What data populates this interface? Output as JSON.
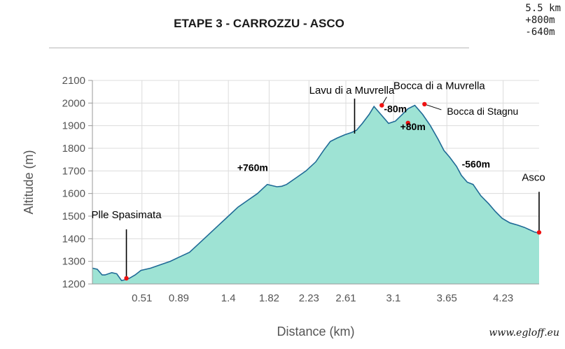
{
  "header": {
    "title": "ETAPE 3 - CARROZZU - ASCO",
    "stats": [
      "5.5 km",
      "+800m",
      "-640m"
    ]
  },
  "watermark": "www.egloff.eu",
  "colors": {
    "fill": "#9ee3d4",
    "line": "#1f6a96",
    "marker": "#ee1111",
    "grid": "#dcdcdc",
    "axis_text": "#555555"
  },
  "chart_data": {
    "type": "area",
    "title": "",
    "xlabel": "Distance (km)",
    "ylabel": "Altitude (m)",
    "xlim": [
      0,
      4.6
    ],
    "ylim": [
      1200,
      2100
    ],
    "x_ticks": [
      "0.51",
      "0.89",
      "1.4",
      "1.82",
      "2.23",
      "2.61",
      "3.1",
      "3.65",
      "4.23"
    ],
    "y_ticks": [
      1200,
      1300,
      1400,
      1500,
      1600,
      1700,
      1800,
      1900,
      2000,
      2100
    ],
    "grid": true,
    "series": [
      {
        "x": [
          0,
          0.05,
          0.1,
          0.13,
          0.2,
          0.25,
          0.3,
          0.35,
          0.38,
          0.44,
          0.5,
          0.6,
          0.7,
          0.8,
          0.9,
          1.0,
          1.1,
          1.2,
          1.3,
          1.4,
          1.5,
          1.6,
          1.7,
          1.75,
          1.8,
          1.85,
          1.9,
          1.95,
          2.0,
          2.1,
          2.2,
          2.3,
          2.38,
          2.45,
          2.52,
          2.6,
          2.67,
          2.72,
          2.78,
          2.85,
          2.9,
          2.97,
          3.05,
          3.12,
          3.18,
          3.25,
          3.32,
          3.4,
          3.48,
          3.56,
          3.62,
          3.68,
          3.75,
          3.8,
          3.86,
          3.92,
          4.0,
          4.08,
          4.15,
          4.22,
          4.3,
          4.38,
          4.45,
          4.5,
          4.55,
          4.6
        ],
        "y": [
          1270,
          1265,
          1240,
          1240,
          1250,
          1245,
          1215,
          1220,
          1225,
          1240,
          1260,
          1270,
          1285,
          1300,
          1320,
          1340,
          1380,
          1420,
          1460,
          1500,
          1540,
          1570,
          1600,
          1620,
          1640,
          1635,
          1630,
          1632,
          1640,
          1670,
          1700,
          1740,
          1790,
          1830,
          1845,
          1860,
          1870,
          1880,
          1910,
          1950,
          1985,
          1950,
          1910,
          1920,
          1945,
          1975,
          1990,
          1950,
          1900,
          1840,
          1790,
          1760,
          1720,
          1680,
          1650,
          1640,
          1590,
          1555,
          1520,
          1490,
          1470,
          1460,
          1450,
          1440,
          1430,
          1425
        ]
      }
    ],
    "markers": [
      {
        "x": 0.35,
        "y": 1225,
        "label": "Plle Spasimata"
      },
      {
        "x": 2.98,
        "y": 1990,
        "label": "Bocca di a Muvrella"
      },
      {
        "x": 3.25,
        "y": 1912,
        "label": ""
      },
      {
        "x": 3.42,
        "y": 1995,
        "label": "Bocca di Stagnu"
      },
      {
        "x": 4.6,
        "y": 1428,
        "label": "Asco"
      }
    ],
    "annotations": [
      {
        "text": "Lavu di a Muvrella",
        "x": 2.7,
        "y": 1865
      },
      {
        "text": "+760m",
        "x": 1.65,
        "y": 1700
      },
      {
        "text": "-80m",
        "x": 3.12,
        "y": 1960
      },
      {
        "text": "+80m",
        "x": 3.3,
        "y": 1880
      },
      {
        "text": "-560m",
        "x": 3.95,
        "y": 1715
      }
    ]
  }
}
